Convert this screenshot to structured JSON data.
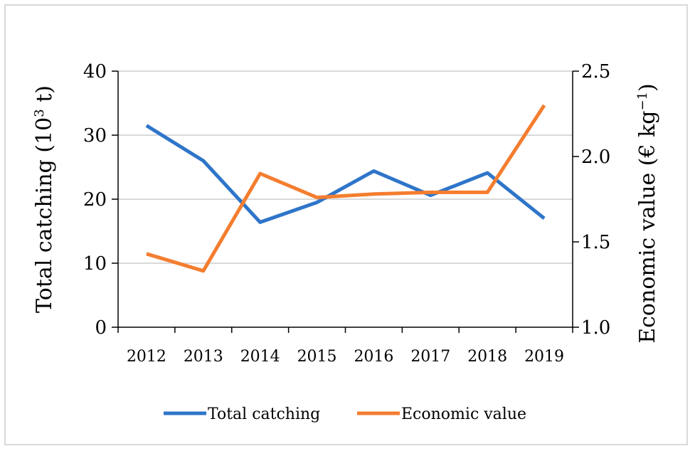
{
  "chart_data": {
    "type": "line",
    "categories": [
      "2012",
      "2013",
      "2014",
      "2015",
      "2016",
      "2017",
      "2018",
      "2019"
    ],
    "series": [
      {
        "name": "Total catching",
        "axis": "left",
        "color": "#2e75c9",
        "values": [
          31.5,
          26.0,
          16.4,
          19.5,
          24.4,
          20.6,
          24.1,
          17.0
        ]
      },
      {
        "name": "Economic value",
        "axis": "right",
        "color": "#f47d2f",
        "values": [
          1.43,
          1.33,
          1.9,
          1.76,
          1.78,
          1.79,
          1.79,
          2.3
        ]
      }
    ],
    "ylabel_left_pre": "Total catching (10",
    "ylabel_left_sup": "3",
    "ylabel_left_post": " t)",
    "ylabel_right_pre": "Economic value (€ kg",
    "ylabel_right_sup": "−1",
    "ylabel_right_post": ")",
    "y_left": {
      "min": 0,
      "max": 40,
      "ticks": [
        "0",
        "10",
        "20",
        "30",
        "40"
      ]
    },
    "y_right": {
      "min": 1.0,
      "max": 2.5,
      "ticks": [
        "1.0",
        "1.5",
        "2.0",
        "2.5"
      ]
    },
    "grid": true,
    "legend_position": "bottom"
  }
}
